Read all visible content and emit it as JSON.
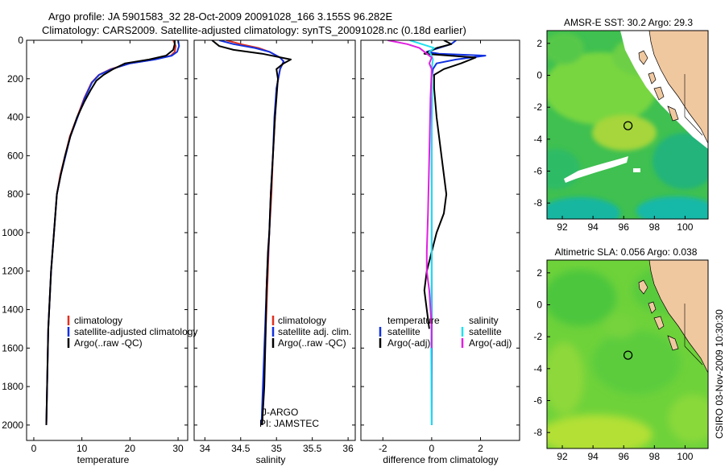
{
  "title_line1": "Argo profile: JA 5901583_32 28-Oct-2009 20091028_166 3.155S 96.282E",
  "title_line2": "Climatology: CARS2009. Satellite-adjusted climatology: synTS_20091028.nc (0.18d earlier)",
  "side_label": "CSIRO 03-Nov-2009 10:30:30",
  "annot_argo": "J-ARGO",
  "annot_pi": "PI: JAMSTEC",
  "colors": {
    "clim": "#e03020",
    "sat": "#1030e0",
    "argo": "#000000",
    "cyan": "#20e0f0",
    "magenta": "#e020e0",
    "land": "#f0c8a0"
  },
  "chart_data": [
    {
      "type": "line",
      "name": "temperature-profile",
      "xlabel": "temperature",
      "ylabel": "",
      "xlim": [
        -1.5,
        32
      ],
      "ylim": [
        2080,
        0
      ],
      "xticks": [
        0,
        10,
        20,
        30
      ],
      "yticks": [
        0,
        200,
        400,
        600,
        800,
        1000,
        1200,
        1400,
        1600,
        1800,
        2000
      ],
      "legend": {
        "position": "lower-right",
        "entries": [
          "climatology",
          "satellite-adjusted climatology",
          "Argo(..raw -QC)"
        ]
      },
      "series": [
        {
          "name": "climatology",
          "color": "#e03020",
          "x": [
            29.0,
            29.5,
            29.3,
            28.5,
            25.0,
            20.0,
            16.0,
            13.5,
            12.0,
            10.5,
            9.0,
            7.5,
            6.5,
            5.5,
            4.8,
            4.2,
            3.6,
            3.0,
            2.6
          ],
          "y": [
            0,
            30,
            60,
            80,
            100,
            120,
            150,
            180,
            220,
            300,
            400,
            500,
            600,
            700,
            800,
            1000,
            1200,
            1500,
            2000
          ]
        },
        {
          "name": "satellite-adjusted climatology",
          "color": "#1030e0",
          "x": [
            30.0,
            30.2,
            29.8,
            28.7,
            25.2,
            20.0,
            16.2,
            13.6,
            12.1,
            10.6,
            9.1,
            7.6,
            6.6,
            5.6,
            4.8,
            4.2,
            3.6,
            3.0,
            2.6
          ],
          "y": [
            0,
            30,
            60,
            80,
            100,
            120,
            150,
            180,
            220,
            300,
            400,
            500,
            600,
            700,
            800,
            1000,
            1200,
            1500,
            2000
          ]
        },
        {
          "name": "Argo(..raw -QC)",
          "color": "#000000",
          "x": [
            29.3,
            29.3,
            29.0,
            27.5,
            24.0,
            19.0,
            16.5,
            14.5,
            13.0,
            11.8,
            10.5,
            9.0,
            7.6,
            6.5,
            5.6,
            4.8,
            4.2,
            3.6,
            3.0,
            2.6
          ],
          "y": [
            0,
            20,
            50,
            80,
            100,
            120,
            150,
            180,
            210,
            260,
            320,
            400,
            500,
            600,
            700,
            800,
            1000,
            1200,
            1500,
            2000
          ]
        }
      ]
    },
    {
      "type": "line",
      "name": "salinity-profile",
      "xlabel": "salinity",
      "ylabel": "",
      "xlim": [
        33.85,
        36.1
      ],
      "ylim": [
        2080,
        0
      ],
      "xticks": [
        34,
        34.5,
        35,
        35.5,
        36
      ],
      "xtick_labels": [
        "34",
        "34.5",
        "35",
        "35.5",
        "36"
      ],
      "legend": {
        "position": "lower-right",
        "entries": [
          "climatology",
          "satellite adj. clim.",
          "Argo(..raw -QC)"
        ]
      },
      "series": [
        {
          "name": "climatology",
          "color": "#e03020",
          "x": [
            34.3,
            34.5,
            34.75,
            34.9,
            35.05,
            35.1,
            35.05,
            35.0,
            34.98,
            34.95,
            34.93,
            34.9,
            34.88,
            34.85,
            34.82,
            34.8
          ],
          "y": [
            0,
            20,
            40,
            60,
            90,
            110,
            150,
            250,
            400,
            600,
            800,
            1000,
            1200,
            1500,
            1800,
            2000
          ]
        },
        {
          "name": "satellite adj. clim.",
          "color": "#1030e0",
          "x": [
            34.2,
            34.4,
            34.7,
            34.9,
            35.05,
            35.1,
            35.05,
            35.0,
            34.97,
            34.95,
            34.92,
            34.9,
            34.87,
            34.84,
            34.81,
            34.79
          ],
          "y": [
            0,
            20,
            40,
            60,
            90,
            110,
            150,
            250,
            400,
            600,
            800,
            1000,
            1200,
            1500,
            1800,
            2000
          ]
        },
        {
          "name": "Argo(..raw -QC)",
          "color": "#000000",
          "x": [
            34.1,
            34.2,
            34.4,
            34.8,
            35.2,
            35.1,
            35.0,
            35.02,
            35.0,
            34.98,
            34.95,
            34.92,
            34.9,
            34.88,
            34.87,
            34.86,
            34.85,
            34.83,
            34.8
          ],
          "y": [
            0,
            30,
            50,
            70,
            100,
            120,
            150,
            200,
            300,
            400,
            600,
            800,
            1000,
            1100,
            1200,
            1300,
            1500,
            1800,
            2000
          ]
        }
      ]
    },
    {
      "type": "line",
      "name": "difference-profile",
      "xlabel": "difference from climatology",
      "ylabel": "",
      "xlim": [
        -2.9,
        3.6
      ],
      "ylim": [
        2080,
        0
      ],
      "xticks": [
        -2,
        0,
        2
      ],
      "legend": {
        "position": "lower-right",
        "entries": [
          "temperature",
          "satellite",
          "Argo(-adj)",
          "salinity",
          "satellite",
          "Argo(-adj)"
        ]
      },
      "series": [
        {
          "name": "temperature satellite",
          "color": "#1030e0",
          "x": [
            1.0,
            0.8,
            0.3,
            -0.2,
            0.3,
            2.2,
            1.0,
            0.2,
            0.05,
            0.0,
            0.0,
            0.0,
            0.0,
            0.0,
            0.0
          ],
          "y": [
            0,
            20,
            40,
            60,
            70,
            80,
            100,
            120,
            150,
            200,
            400,
            800,
            1200,
            1600,
            2000
          ]
        },
        {
          "name": "temperature Argo(-adj)",
          "color": "#000000",
          "x": [
            0.5,
            0.8,
            0.2,
            -0.3,
            1.8,
            1.2,
            0.5,
            0.1,
            0.1,
            0.2,
            0.4,
            0.6,
            0.5,
            0.2,
            0.0,
            -0.2,
            -0.3,
            -0.2,
            -0.1
          ],
          "y": [
            0,
            20,
            40,
            70,
            90,
            120,
            150,
            180,
            250,
            400,
            600,
            800,
            900,
            1000,
            1100,
            1200,
            1300,
            1400,
            1500
          ]
        },
        {
          "name": "salinity satellite",
          "color": "#20e0f0",
          "x": [
            -0.9,
            -0.4,
            0.1,
            -0.1,
            0.0,
            0.05,
            0.0,
            0.02,
            0.0,
            0.0,
            0.0,
            -0.02,
            0.0
          ],
          "y": [
            0,
            20,
            40,
            60,
            80,
            100,
            150,
            300,
            500,
            800,
            1200,
            1600,
            2000
          ]
        },
        {
          "name": "salinity Argo(-adj)",
          "color": "#e020e0",
          "x": [
            -1.8,
            -1.0,
            -0.5,
            -0.2,
            0.0,
            -0.1,
            0.0,
            -0.05,
            -0.1,
            -0.15,
            -0.2,
            -0.2,
            -0.1,
            0.0,
            0.0
          ],
          "y": [
            0,
            20,
            40,
            70,
            90,
            120,
            150,
            300,
            600,
            900,
            1100,
            1200,
            1300,
            1500,
            1600
          ]
        }
      ]
    },
    {
      "type": "heatmap",
      "name": "amsr-e-sst-map",
      "title": "AMSR-E SST: 30.2  Argo: 29.3",
      "xlim": [
        91,
        101.5
      ],
      "ylim": [
        -9,
        2.8
      ],
      "xticks": [
        92,
        94,
        96,
        98,
        100
      ],
      "yticks": [
        2,
        0,
        -2,
        -4,
        -6,
        -8
      ],
      "argo_position": [
        96.282,
        -3.155
      ]
    },
    {
      "type": "heatmap",
      "name": "altimetric-sla-map",
      "title": "Altimetric SLA: 0.056  Argo: 0.038",
      "xlim": [
        91,
        101.5
      ],
      "ylim": [
        -9,
        2.8
      ],
      "xticks": [
        92,
        94,
        96,
        98,
        100
      ],
      "yticks": [
        2,
        0,
        -2,
        -4,
        -6,
        -8
      ],
      "argo_position": [
        96.282,
        -3.155
      ]
    }
  ]
}
